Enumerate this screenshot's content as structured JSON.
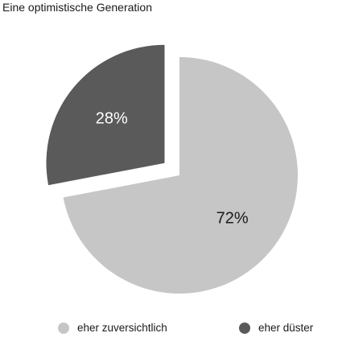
{
  "chart_data": {
    "type": "pie",
    "title": "Eine optimistische Generation",
    "slices": [
      {
        "name": "eher zuversichtlich",
        "value": 72,
        "label": "72%",
        "color": "#c6c6c6",
        "exploded": false
      },
      {
        "name": "eher düster",
        "value": 28,
        "label": "28%",
        "color": "#5a5a5a",
        "exploded": true
      }
    ],
    "legend_position": "bottom"
  }
}
